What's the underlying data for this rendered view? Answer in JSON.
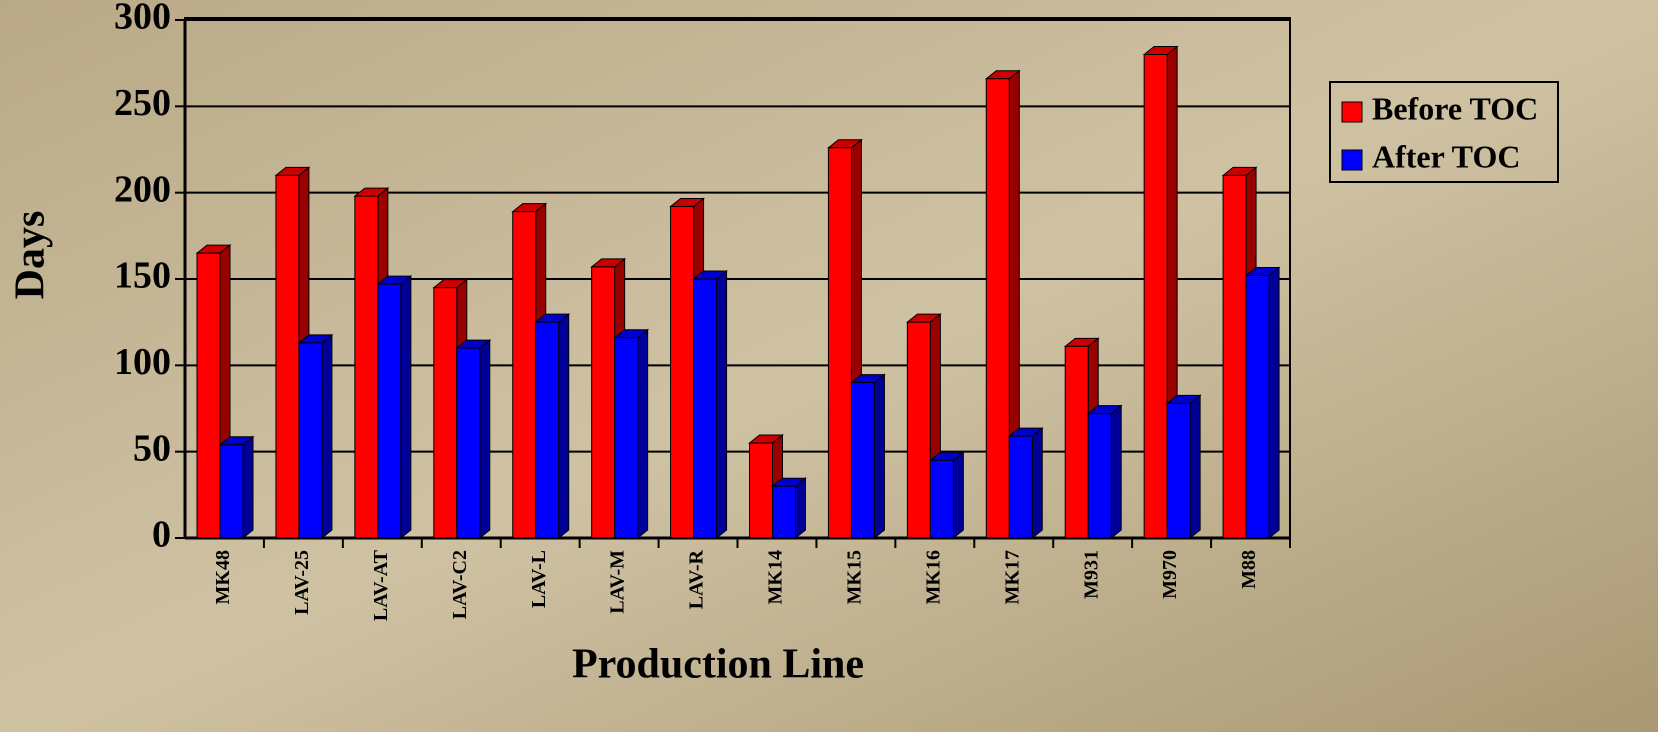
{
  "chart_data": {
    "type": "bar3d",
    "y_label": "Days",
    "x_label": "Production Line",
    "categories": [
      "MK48",
      "LAV-25",
      "LAV-AT",
      "LAV-C2",
      "LAV-L",
      "LAV-M",
      "LAV-R",
      "MK14",
      "MK15",
      "MK16",
      "MK17",
      "M931",
      "M970",
      "M88"
    ],
    "series": [
      {
        "name": "Before TOC",
        "color": "#ff0000",
        "values": [
          165,
          210,
          198,
          145,
          189,
          157,
          192,
          55,
          226,
          125,
          266,
          111,
          280,
          210
        ]
      },
      {
        "name": "After TOC",
        "color": "#0000ff",
        "values": [
          54,
          113,
          147,
          110,
          125,
          116,
          150,
          30,
          90,
          45,
          59,
          72,
          78,
          152
        ]
      }
    ],
    "ylim": [
      0,
      300
    ],
    "yticks": [
      0,
      50,
      100,
      150,
      200,
      250,
      300
    ],
    "grid": true,
    "legend": "right"
  }
}
